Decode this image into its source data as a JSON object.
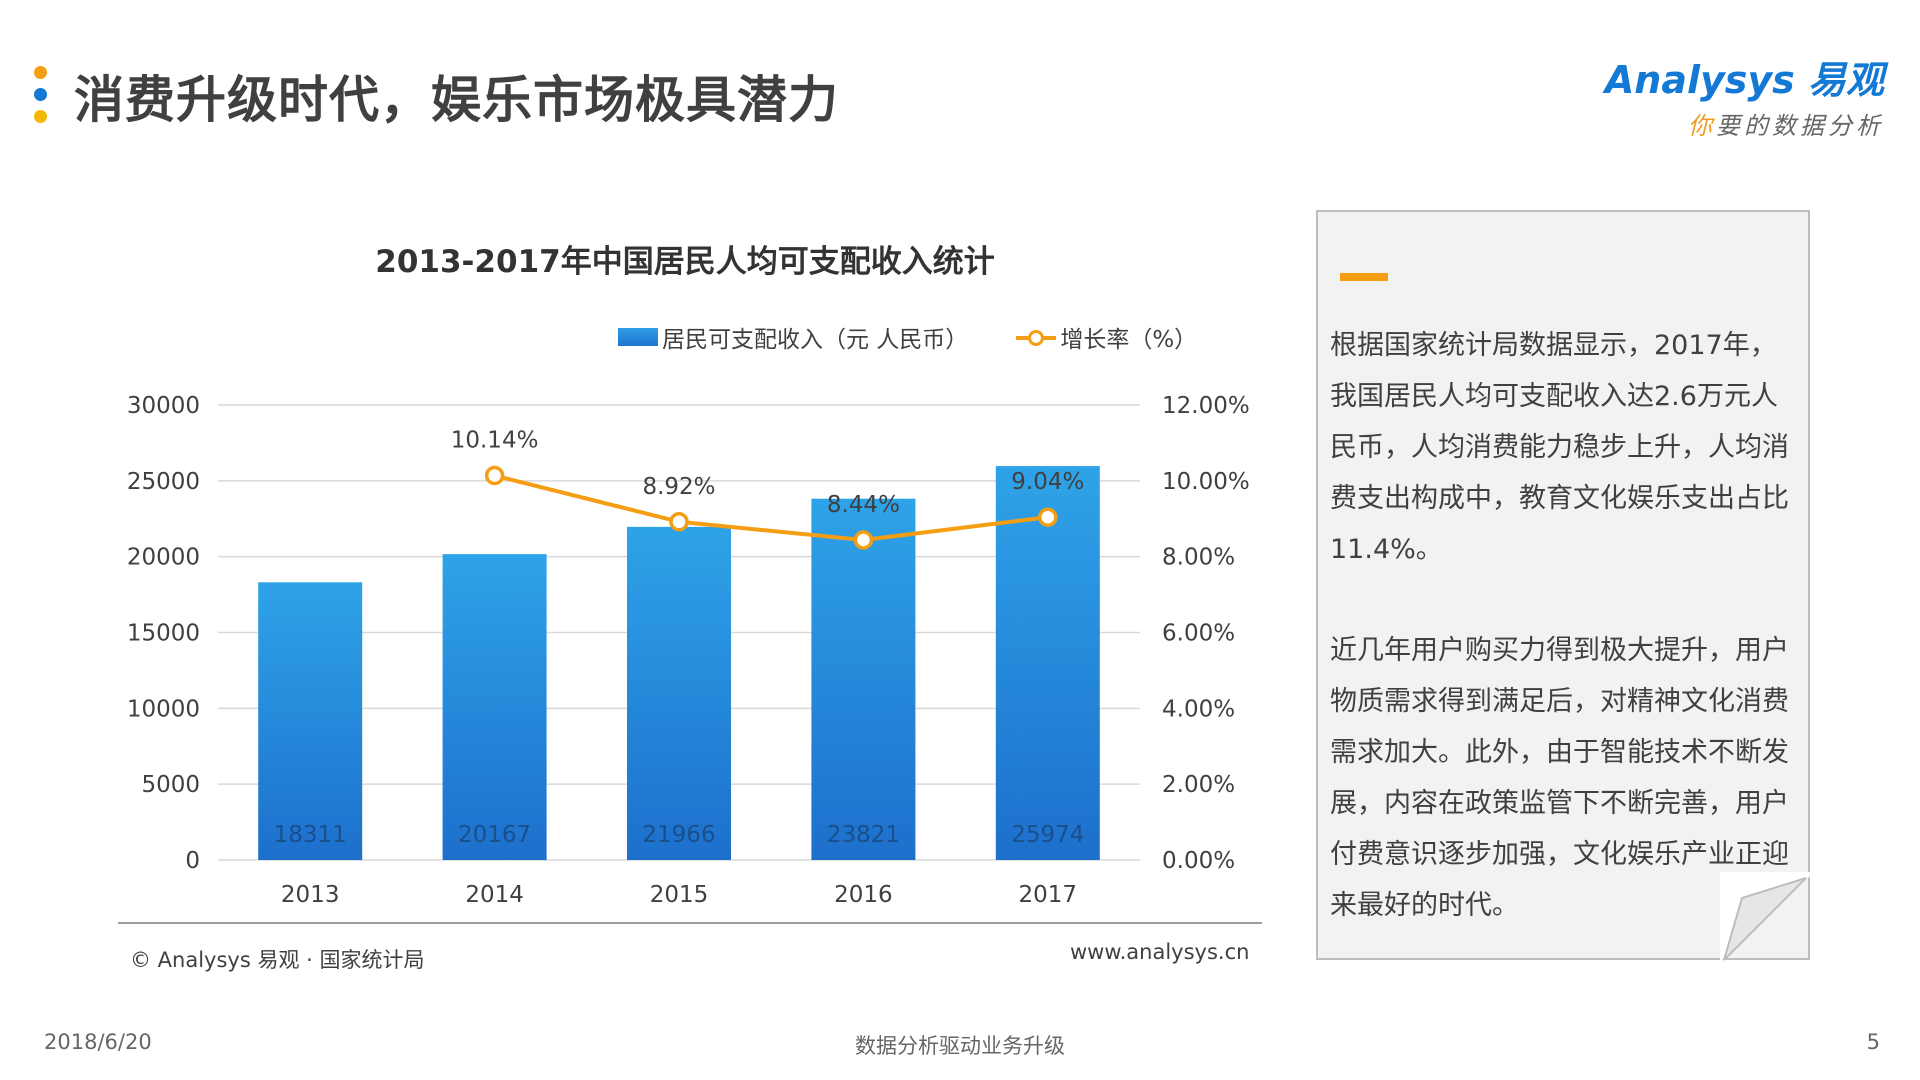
{
  "header": {
    "title": "消费升级时代，娱乐市场极具潜力",
    "dot_colors": [
      "#f59d13",
      "#1479d4",
      "#f5b800"
    ]
  },
  "logo": {
    "brand": "Analysys 易观",
    "tagline_accent": "你",
    "tagline_rest": "要的数据分析"
  },
  "legend": {
    "bar_label": "居民可支配收入（元 人民币）",
    "line_label": "增长率（%）"
  },
  "chart_data": {
    "type": "bar",
    "title": "2013-2017年中国居民人均可支配收入统计",
    "categories": [
      "2013",
      "2014",
      "2015",
      "2016",
      "2017"
    ],
    "series": [
      {
        "name": "居民可支配收入（元 人民币）",
        "type": "bar",
        "axis": "left",
        "values": [
          18311,
          20167,
          21966,
          23821,
          25974
        ],
        "labels": [
          "18311",
          "20167",
          "21966",
          "23821",
          "25974"
        ],
        "color": "#1f86dc"
      },
      {
        "name": "增长率（%）",
        "type": "line",
        "axis": "right",
        "values": [
          null,
          10.14,
          8.92,
          8.44,
          9.04
        ],
        "labels": [
          "",
          "10.14%",
          "8.92%",
          "8.44%",
          "9.04%"
        ],
        "color": "#f59d13"
      }
    ],
    "y_left": {
      "min": 0,
      "max": 30000,
      "ticks": [
        "0",
        "5000",
        "10000",
        "15000",
        "20000",
        "25000",
        "30000"
      ]
    },
    "y_right": {
      "min": 0,
      "max": 12,
      "ticks": [
        "0.00%",
        "2.00%",
        "4.00%",
        "6.00%",
        "8.00%",
        "10.00%",
        "12.00%"
      ]
    },
    "grid": true,
    "legend_position": "top"
  },
  "source": "© Analysys 易观 · 国家统计局",
  "website": "www.analysys.cn",
  "note": {
    "paragraphs": [
      "根据国家统计局数据显示，2017年，我国居民人均可支配收入达2.6万元人民币，人均消费能力稳步上升，人均消费支出构成中，教育文化娱乐支出占比11.4%。",
      "近几年用户购买力得到极大提升，用户物质需求得到满足后，对精神文化消费需求加大。此外，由于智能技术不断发展，内容在政策监管下不断完善，用户付费意识逐步加强，文化娱乐产业正迎来最好的时代。"
    ]
  },
  "footer": {
    "date": "2018/6/20",
    "center": "数据分析驱动业务升级",
    "page": "5"
  }
}
